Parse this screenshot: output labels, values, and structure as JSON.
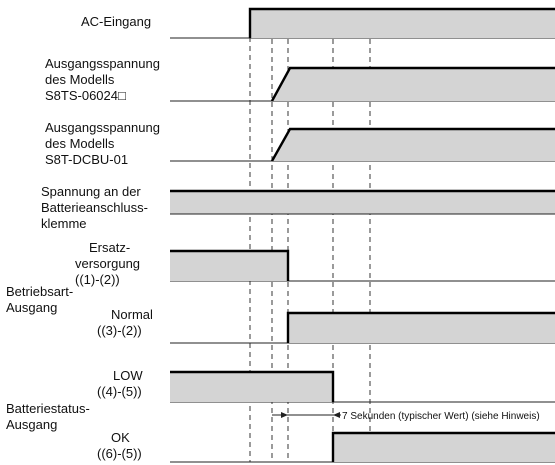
{
  "signals": {
    "ac_input": {
      "label": "AC-Eingang"
    },
    "s8ts_output": {
      "label_lines": [
        "Ausgangsspannung",
        "des Modells",
        "S8TS-06024□"
      ]
    },
    "s8t_output": {
      "label_lines": [
        "Ausgangsspannung",
        "des Modells",
        "S8T-DCBU-01"
      ]
    },
    "battery_terminal": {
      "label_lines": [
        "Spannung an der",
        "Batterieanschluss-",
        "klemme"
      ]
    },
    "backup": {
      "label_lines": [
        "Ersatz-",
        "versorgung",
        "((1)-(2))"
      ]
    },
    "normal": {
      "label_lines": [
        "Normal",
        "((3)-(2))"
      ]
    },
    "low": {
      "label_lines": [
        "LOW",
        "((4)-(5))"
      ]
    },
    "ok": {
      "label_lines": [
        "OK",
        "((6)-(5))"
      ]
    }
  },
  "groups": {
    "operation_mode": {
      "label_lines": [
        "Betriebsart-",
        "Ausgang"
      ]
    },
    "battery_status": {
      "label_lines": [
        "Batteriestatus-",
        "Ausgang"
      ]
    }
  },
  "annotation": {
    "delay_text": "7 Sekunden (typischer Wert) (siehe Hinweis)"
  },
  "colors": {
    "signal_fill": "#d4d4d4",
    "signal_edge": "#000000",
    "line": "#222222"
  }
}
